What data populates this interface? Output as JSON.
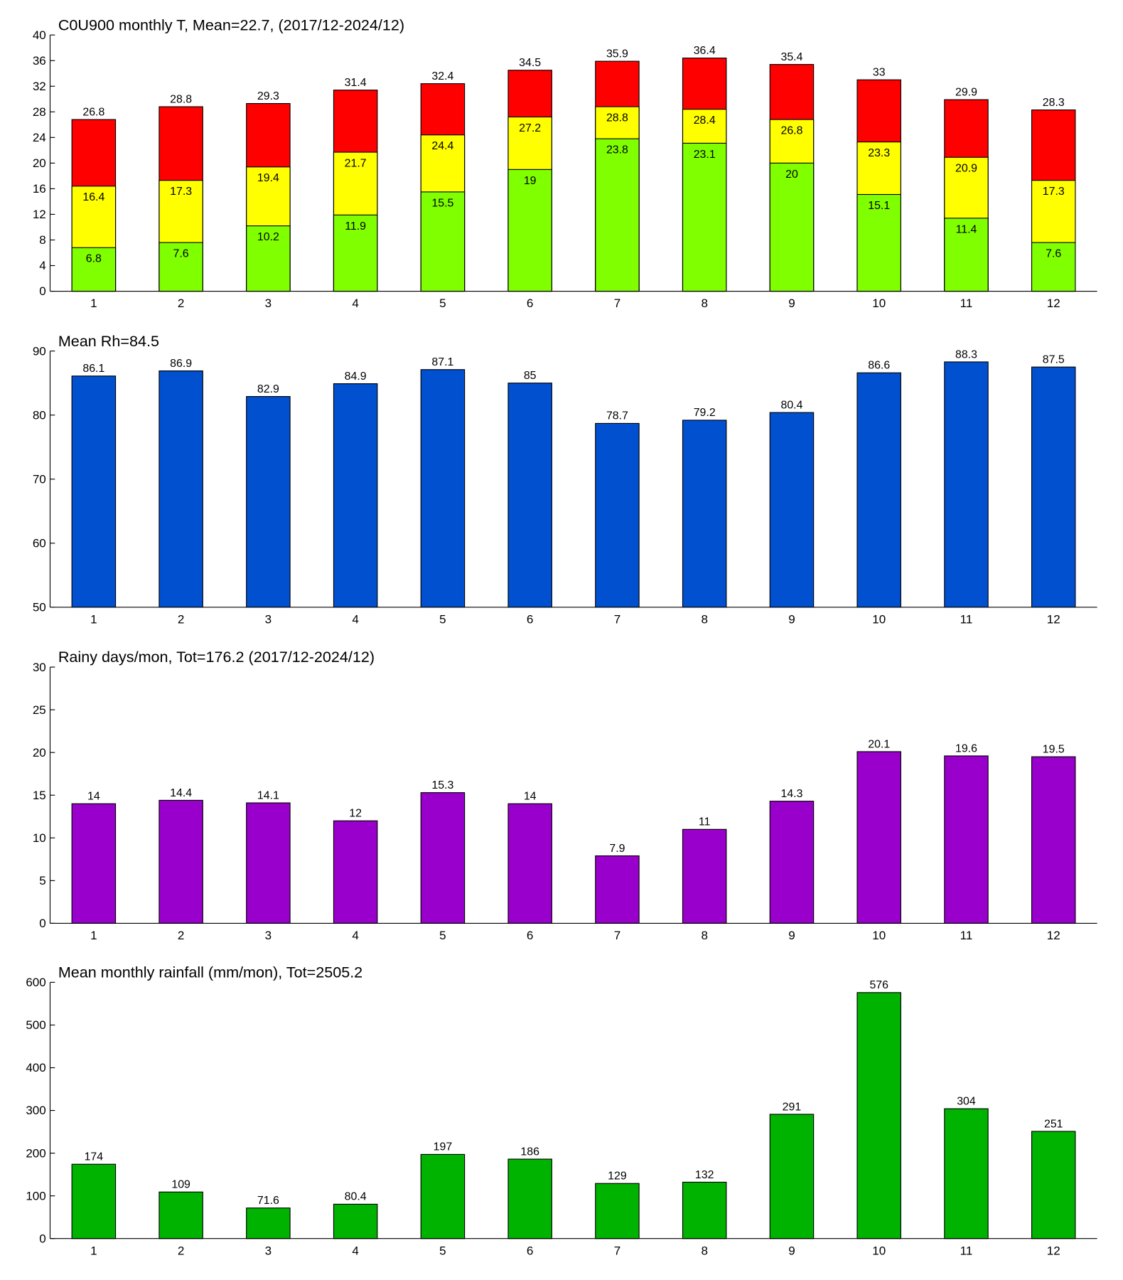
{
  "chart_data": [
    {
      "type": "bar",
      "title": "C0U900 monthly T, Mean=22.7, (2017/12-2024/12)",
      "categories": [
        "1",
        "2",
        "3",
        "4",
        "5",
        "6",
        "7",
        "8",
        "9",
        "10",
        "11",
        "12"
      ],
      "series": [
        {
          "color": "#ff0000",
          "values": [
            26.8,
            28.8,
            29.3,
            31.4,
            32.4,
            34.5,
            35.9,
            36.4,
            35.4,
            33,
            29.9,
            28.3
          ]
        },
        {
          "color": "#ffff00",
          "values": [
            16.4,
            17.3,
            19.4,
            21.7,
            24.4,
            27.2,
            28.8,
            28.4,
            26.8,
            23.3,
            20.9,
            17.3
          ]
        },
        {
          "color": "#80ff00",
          "values": [
            6.8,
            7.6,
            10.2,
            11.9,
            15.5,
            19,
            23.8,
            23.1,
            20,
            15.1,
            11.4,
            7.6
          ]
        }
      ],
      "ylim": [
        0,
        40
      ],
      "yticks": [
        0,
        4,
        8,
        12,
        16,
        20,
        24,
        28,
        32,
        36,
        40
      ]
    },
    {
      "type": "bar",
      "title": "Mean Rh=84.5",
      "categories": [
        "1",
        "2",
        "3",
        "4",
        "5",
        "6",
        "7",
        "8",
        "9",
        "10",
        "11",
        "12"
      ],
      "values": [
        86.1,
        86.9,
        82.9,
        84.9,
        87.1,
        85,
        78.7,
        79.2,
        80.4,
        86.6,
        88.3,
        87.5
      ],
      "color": "#0050d0",
      "ylim": [
        50,
        90
      ],
      "yticks": [
        50,
        60,
        70,
        80,
        90
      ]
    },
    {
      "type": "bar",
      "title": "Rainy days/mon, Tot=176.2 (2017/12-2024/12)",
      "categories": [
        "1",
        "2",
        "3",
        "4",
        "5",
        "6",
        "7",
        "8",
        "9",
        "10",
        "11",
        "12"
      ],
      "values": [
        14,
        14.4,
        14.1,
        12,
        15.3,
        14,
        7.9,
        11,
        14.3,
        20.1,
        19.6,
        19.5
      ],
      "color": "#9900cc",
      "ylim": [
        0,
        30
      ],
      "yticks": [
        0,
        5,
        10,
        15,
        20,
        25,
        30
      ]
    },
    {
      "type": "bar",
      "title": "Mean monthly rainfall (mm/mon), Tot=2505.2",
      "categories": [
        "1",
        "2",
        "3",
        "4",
        "5",
        "6",
        "7",
        "8",
        "9",
        "10",
        "11",
        "12"
      ],
      "values": [
        174,
        109,
        71.6,
        80.4,
        197,
        186,
        129,
        132,
        291,
        576,
        304,
        251
      ],
      "color": "#00b300",
      "ylim": [
        0,
        600
      ],
      "yticks": [
        0,
        100,
        200,
        300,
        400,
        500,
        600
      ]
    }
  ]
}
